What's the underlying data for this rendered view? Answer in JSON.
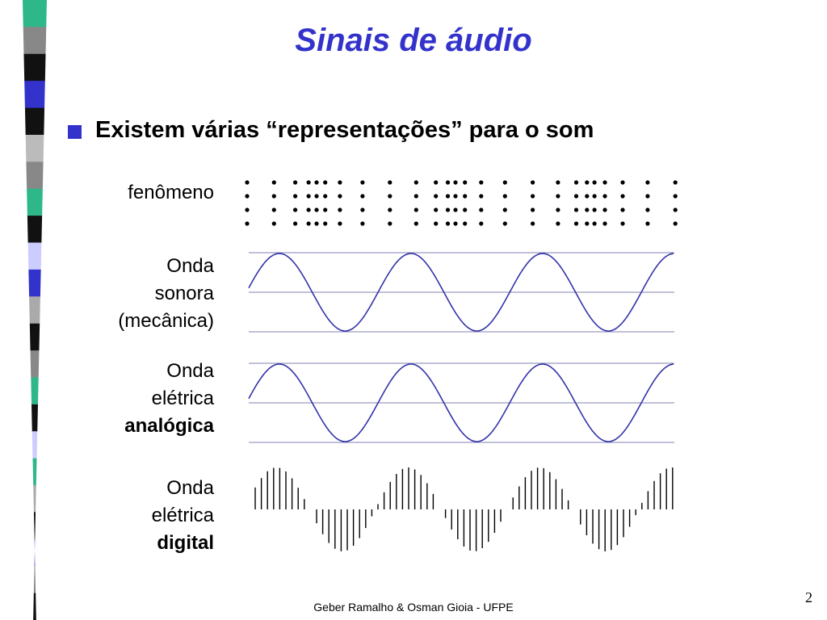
{
  "title": "Sinais de áudio",
  "bullet": "Existem várias “representações” para o som",
  "rows": [
    {
      "lines": [
        "fenômeno"
      ],
      "bold_last": false
    },
    {
      "lines": [
        "Onda",
        "sonora",
        "(mecânica)"
      ],
      "bold_last": false
    },
    {
      "lines": [
        "Onda",
        "elétrica",
        "analógica"
      ],
      "bold_last": true
    },
    {
      "lines": [
        "Onda",
        "elétrica",
        "digital"
      ],
      "bold_last": true
    }
  ],
  "footer": "Geber Ramalho & Osman Gioia - UFPE",
  "page_number": "2",
  "colors": {
    "title": "#3333cc",
    "bullet": "#3333cc",
    "wave": "#3333aa",
    "axis": "#8080b0"
  },
  "stripe_colors": [
    "#2eb88a",
    "#888888",
    "#111111",
    "#3333cc",
    "#111111",
    "#bbbbbb",
    "#888888",
    "#2eb88a",
    "#111111",
    "#ccccff",
    "#3333cc",
    "#aaaaaa",
    "#111111",
    "#888888",
    "#2eb88a",
    "#111111",
    "#ccccff",
    "#2eb88a",
    "#aaaaaa",
    "#111111",
    "#3333cc",
    "#888888",
    "#111111"
  ]
}
